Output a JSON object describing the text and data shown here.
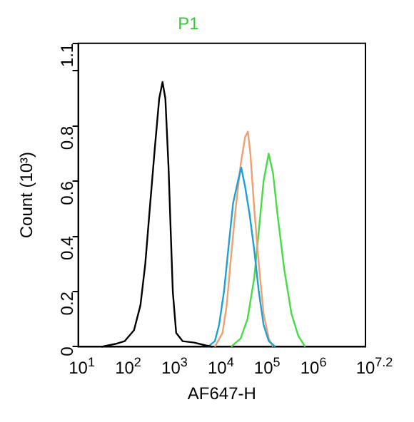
{
  "chart_data": {
    "type": "line",
    "title": "P1",
    "xlabel": "AF647-H",
    "ylabel": "Count (10³)",
    "log": "x",
    "grid": false,
    "legend": false,
    "marker": "none",
    "xlim": [
      10,
      15848932
    ],
    "xticks": [
      {
        "value": 10,
        "label": "10$^{1}$"
      },
      {
        "value": 100,
        "label": "10$^{2}$"
      },
      {
        "value": 1000,
        "label": "10$^{3}$"
      },
      {
        "value": 10000,
        "label": "10$^{4}$"
      },
      {
        "value": 100000,
        "label": "10$^{5}$"
      },
      {
        "value": 1000000,
        "label": "10$^{6}$"
      },
      {
        "value": 15848932,
        "label": "10$^{7.2}$"
      }
    ],
    "ylim": [
      0,
      1.1
    ],
    "yticks": [
      0,
      0.2,
      0.4,
      0.6,
      0.8,
      {
        "value": 1,
        "label": null
      },
      1.1
    ],
    "series": [
      {
        "color": "#000000",
        "x": [
          32,
          63,
          100,
          160,
          220,
          280,
          350,
          450,
          560,
          660,
          760,
          890,
          1000,
          1100,
          1300,
          1800,
          3200,
          5600,
          7900
        ],
        "values": [
          0,
          0.01,
          0.02,
          0.06,
          0.15,
          0.3,
          0.5,
          0.72,
          0.9,
          0.96,
          0.9,
          0.65,
          0.4,
          0.2,
          0.05,
          0.02,
          0.015,
          0.005,
          0
        ]
      },
      {
        "color": "#1e9fd6",
        "x": [
          6300,
          8900,
          11000,
          14000,
          18000,
          22000,
          28000,
          33000,
          40000,
          50000,
          63000,
          79000,
          100000,
          130000,
          180000
        ],
        "values": [
          0,
          0.02,
          0.08,
          0.2,
          0.38,
          0.52,
          0.6,
          0.65,
          0.58,
          0.48,
          0.35,
          0.2,
          0.08,
          0.02,
          0
        ]
      },
      {
        "color": "#f0a070",
        "x": [
          8900,
          13000,
          16000,
          20000,
          25000,
          32000,
          40000,
          46000,
          52000,
          63000,
          79000,
          100000,
          130000,
          160000
        ],
        "values": [
          0,
          0.05,
          0.15,
          0.33,
          0.5,
          0.66,
          0.76,
          0.78,
          0.7,
          0.5,
          0.3,
          0.12,
          0.03,
          0
        ]
      },
      {
        "color": "#44dd44",
        "x": [
          20000,
          32000,
          45000,
          63000,
          79000,
          100000,
          129000,
          160000,
          200000,
          280000,
          400000,
          560000,
          790000
        ],
        "values": [
          0,
          0.03,
          0.1,
          0.25,
          0.42,
          0.6,
          0.7,
          0.63,
          0.48,
          0.28,
          0.12,
          0.04,
          0
        ]
      }
    ]
  }
}
